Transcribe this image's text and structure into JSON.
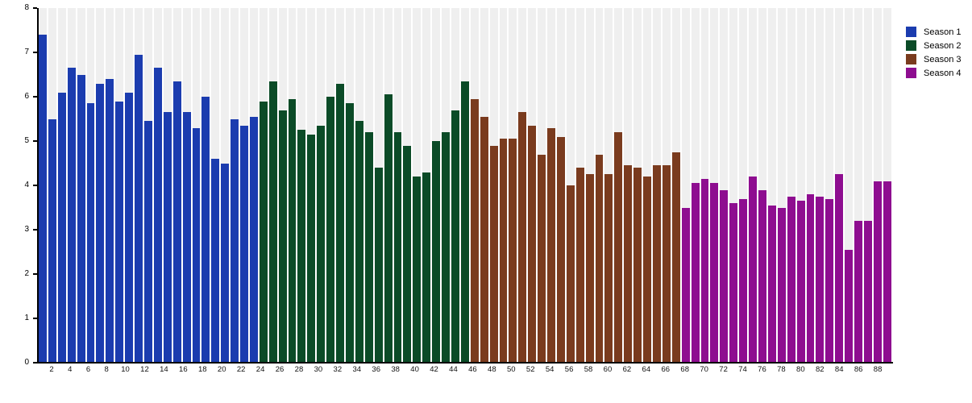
{
  "chart_data": {
    "type": "bar",
    "title": "",
    "xlabel": "",
    "ylabel": "",
    "ylim": [
      0,
      8
    ],
    "yticks": [
      0,
      1,
      2,
      3,
      4,
      5,
      6,
      7,
      8
    ],
    "x_label_step": 2,
    "grid": false,
    "plot_background": "#ffffff",
    "slot_stripe_color": "#efefef",
    "axis_color": "#000000",
    "legend_position": "top-right",
    "x_start": 1,
    "series": [
      {
        "name": "Season 1",
        "color": "#1b3caf",
        "start_episode": 1,
        "values": [
          7.4,
          5.5,
          6.1,
          6.65,
          6.5,
          5.85,
          6.3,
          6.4,
          5.9,
          6.1,
          6.95,
          5.45,
          6.65,
          5.65,
          6.35,
          5.65,
          5.3,
          6.0,
          4.6,
          4.5,
          5.5,
          5.35,
          5.55
        ]
      },
      {
        "name": "Season 2",
        "color": "#0b4b27",
        "start_episode": 24,
        "values": [
          5.9,
          6.35,
          5.7,
          5.95,
          5.25,
          5.15,
          5.35,
          6.0,
          6.3,
          5.85,
          5.45,
          5.2,
          4.4,
          6.05,
          5.2,
          4.9,
          4.2,
          4.3,
          5.0,
          5.2,
          5.7,
          6.35
        ]
      },
      {
        "name": "Season 3",
        "color": "#7a3b1e",
        "start_episode": 46,
        "values": [
          5.95,
          5.55,
          4.9,
          5.05,
          5.05,
          5.65,
          5.35,
          4.7,
          5.3,
          5.1,
          4.0,
          4.4,
          4.25,
          4.7,
          4.25,
          5.2,
          4.45,
          4.4,
          4.2,
          4.45,
          4.45,
          4.75
        ]
      },
      {
        "name": "Season 4",
        "color": "#8e0d90",
        "start_episode": 68,
        "values": [
          3.5,
          4.05,
          4.15,
          4.05,
          3.9,
          3.6,
          3.7,
          4.2,
          3.9,
          3.55,
          3.5,
          3.75,
          3.65,
          3.8,
          3.75,
          3.7,
          4.25,
          2.55,
          3.2,
          3.2,
          4.1,
          4.1
        ]
      }
    ]
  }
}
